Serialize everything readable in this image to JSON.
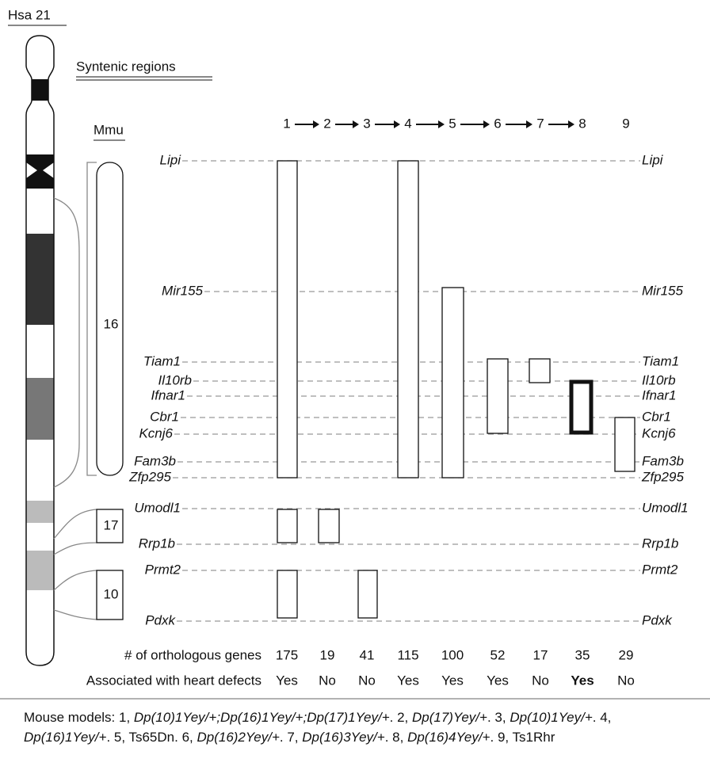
{
  "chromosome_label": "Hsa 21",
  "section_title": "Syntenic regions",
  "mmu_label": "Mmu",
  "mmu_blocks": [
    "16",
    "17",
    "10"
  ],
  "models": [
    "1",
    "2",
    "3",
    "4",
    "5",
    "6",
    "7",
    "8",
    "9"
  ],
  "genes": [
    "Lipi",
    "Mir155",
    "Tiam1",
    "Il10rb",
    "Ifnar1",
    "Cbr1",
    "Kcnj6",
    "Fam3b",
    "Zfp295",
    "Umodl1",
    "Rrp1b",
    "Prmt2",
    "Pdxk"
  ],
  "gene_counts": {
    "label": "# of orthologous genes",
    "values": [
      175,
      19,
      41,
      115,
      100,
      52,
      17,
      35,
      29
    ]
  },
  "heart_defects": {
    "label": "Associated with heart defects",
    "values": [
      "Yes",
      "No",
      "No",
      "Yes",
      "Yes",
      "Yes",
      "No",
      "Yes",
      "No"
    ]
  },
  "caption": [
    {
      "text": "Mouse models:  1, "
    },
    {
      "text": "Dp(10)1Yey/+;Dp(16)1Yey/+;Dp(17)1Yey/+",
      "italic": true
    },
    {
      "text": ". 2, "
    },
    {
      "text": "Dp(17)Yey/+",
      "italic": true
    },
    {
      "text": ". 3, "
    },
    {
      "text": "Dp(10)1Yey/+",
      "italic": true
    },
    {
      "text": ". 4, "
    },
    {
      "text": "Dp(16)1Yey/+",
      "italic": true
    },
    {
      "text": ". 5, Ts65Dn. 6, "
    },
    {
      "text": "Dp(16)2Yey/+",
      "italic": true
    },
    {
      "text": ". 7, "
    },
    {
      "text": "Dp(16)3Yey/+",
      "italic": true
    },
    {
      "text": ". 8, "
    },
    {
      "text": "Dp(16)4Yey/+",
      "italic": true
    },
    {
      "text": ". 9, Ts1Rhr"
    }
  ]
}
